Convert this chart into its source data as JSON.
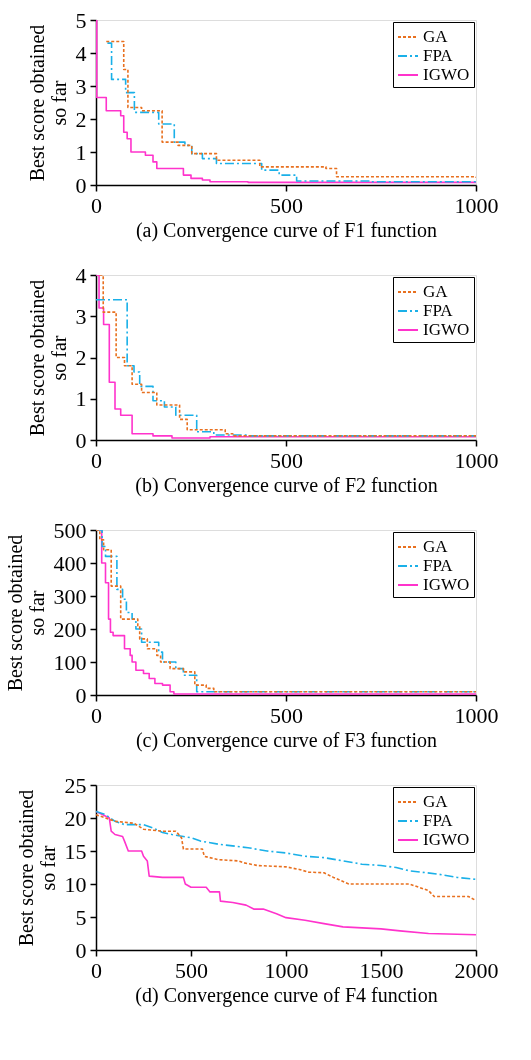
{
  "chart_data": [
    {
      "type": "step",
      "xlabel": "(a) Convergence curve of F1 function",
      "ylabel": "Best score obtained\nso far",
      "xlim": [
        0,
        1000
      ],
      "ylim": [
        0,
        5
      ],
      "xticks": [
        0,
        500,
        1000
      ],
      "yticks": [
        0,
        1,
        2,
        3,
        4,
        5
      ],
      "grid": false,
      "marker": "none",
      "legend": "top right",
      "series": [
        {
          "name": "GA",
          "color": "#e8701f",
          "line_style": "dotted",
          "x": [
            27,
            73,
            84,
            120,
            174,
            216,
            252,
            317,
            431,
            605,
            633,
            1000
          ],
          "values": [
            4.35,
            3.5,
            2.35,
            2.25,
            1.3,
            1.2,
            0.95,
            0.75,
            0.55,
            0.5,
            0.25,
            0.22
          ]
        },
        {
          "name": "FPA",
          "color": "#1ab0e8",
          "line_style": "dashed",
          "x": [
            30,
            41,
            78,
            101,
            165,
            206,
            234,
            252,
            280,
            317,
            436,
            482,
            528,
            720,
            1000
          ],
          "values": [
            4.3,
            3.2,
            2.8,
            2.2,
            1.85,
            1.3,
            1.2,
            0.95,
            0.8,
            0.65,
            0.45,
            0.3,
            0.12,
            0.1,
            0.05
          ]
        },
        {
          "name": "IGWO",
          "color": "#ff33cc",
          "line_style": "solid",
          "x": [
            0,
            2,
            27,
            65,
            73,
            82,
            92,
            130,
            150,
            160,
            230,
            250,
            280,
            300,
            400,
            1000
          ],
          "values": [
            5,
            2.65,
            2.25,
            2.1,
            1.6,
            1.4,
            1.0,
            0.9,
            0.7,
            0.5,
            0.3,
            0.2,
            0.15,
            0.1,
            0.08,
            0.06
          ]
        }
      ]
    },
    {
      "type": "step",
      "xlabel": "(b) Convergence curve of F2 function",
      "ylabel": "Best score obtained\nso far",
      "xlim": [
        0,
        1000
      ],
      "ylim": [
        0,
        4
      ],
      "xticks": [
        0,
        500,
        1000
      ],
      "yticks": [
        0,
        1,
        2,
        3,
        4
      ],
      "grid": false,
      "marker": "none",
      "legend": "top right",
      "series": [
        {
          "name": "GA",
          "color": "#e8701f",
          "line_style": "dotted",
          "x": [
            9,
            19,
            53,
            75,
            95,
            120,
            160,
            220,
            240,
            340,
            360,
            1000
          ],
          "values": [
            4,
            3.1,
            2.0,
            1.8,
            1.35,
            1.15,
            0.85,
            0.5,
            0.25,
            0.15,
            0.1,
            0.1
          ]
        },
        {
          "name": "FPA",
          "color": "#1ab0e8",
          "line_style": "dashed",
          "x": [
            0,
            82,
            100,
            115,
            150,
            180,
            210,
            265,
            310,
            395,
            1000
          ],
          "values": [
            3.4,
            1.8,
            1.65,
            1.3,
            0.95,
            0.8,
            0.6,
            0.2,
            0.12,
            0.1,
            0.08
          ]
        },
        {
          "name": "IGWO",
          "color": "#ff33cc",
          "line_style": "solid",
          "x": [
            0,
            8,
            20,
            35,
            50,
            65,
            95,
            150,
            200,
            300,
            1000
          ],
          "values": [
            4,
            3.2,
            2.8,
            1.4,
            0.75,
            0.6,
            0.15,
            0.1,
            0.05,
            0.08,
            0.08
          ]
        }
      ]
    },
    {
      "type": "step",
      "xlabel": "(c) Convergence curve of F3 function",
      "ylabel": "Best score obtained\nso far",
      "xlim": [
        0,
        1000
      ],
      "ylim": [
        0,
        500
      ],
      "xticks": [
        0,
        500,
        1000
      ],
      "yticks": [
        0,
        100,
        200,
        300,
        400,
        500
      ],
      "grid": false,
      "marker": "none",
      "legend": "top right",
      "series": [
        {
          "name": "GA",
          "color": "#e8701f",
          "line_style": "dotted",
          "x": [
            0,
            10,
            20,
            40,
            65,
            110,
            115,
            135,
            160,
            170,
            195,
            230,
            260,
            290,
            310,
            1000
          ],
          "values": [
            500,
            470,
            440,
            330,
            230,
            210,
            170,
            140,
            120,
            100,
            80,
            70,
            30,
            20,
            10,
            10
          ]
        },
        {
          "name": "FPA",
          "color": "#1ab0e8",
          "line_style": "dashed",
          "x": [
            0,
            16,
            25,
            55,
            70,
            80,
            95,
            105,
            120,
            165,
            175,
            210,
            230,
            265,
            1000
          ],
          "values": [
            500,
            450,
            420,
            320,
            290,
            250,
            230,
            200,
            160,
            130,
            100,
            80,
            60,
            10,
            8
          ]
        },
        {
          "name": "IGWO",
          "color": "#ff33cc",
          "line_style": "solid",
          "x": [
            0,
            15,
            25,
            33,
            38,
            45,
            75,
            90,
            95,
            105,
            125,
            140,
            155,
            175,
            195,
            205,
            1000
          ],
          "values": [
            500,
            400,
            340,
            230,
            190,
            180,
            140,
            120,
            100,
            75,
            65,
            50,
            35,
            30,
            10,
            3,
            3
          ]
        }
      ]
    },
    {
      "type": "line",
      "xlabel": "(d) Convergence curve of F4 function",
      "ylabel": "Best score obtained\nso far",
      "xlim": [
        0,
        2000
      ],
      "ylim": [
        0,
        25
      ],
      "xticks": [
        0,
        500,
        1000,
        1500,
        2000
      ],
      "yticks": [
        0,
        5,
        10,
        15,
        20,
        25
      ],
      "grid": false,
      "marker": "none",
      "legend": "top right",
      "series": [
        {
          "name": "GA",
          "color": "#e8701f",
          "line_style": "dotted",
          "x": [
            0,
            50,
            100,
            200,
            250,
            350,
            420,
            450,
            460,
            560,
            570,
            640,
            750,
            780,
            850,
            1000,
            1070,
            1120,
            1200,
            1250,
            1330,
            1650,
            1700,
            1750,
            1780,
            1960,
            2000
          ],
          "values": [
            20.5,
            20,
            19.5,
            19.2,
            18.3,
            18,
            18,
            17,
            15.3,
            15.3,
            14.2,
            13.7,
            13.5,
            13.2,
            12.8,
            12.6,
            12.2,
            11.8,
            11.7,
            11,
            10,
            10,
            9.5,
            9,
            8.1,
            8.1,
            7.5
          ]
        },
        {
          "name": "FPA",
          "color": "#1ab0e8",
          "line_style": "dashed",
          "x": [
            0,
            50,
            100,
            150,
            250,
            300,
            350,
            400,
            500,
            550,
            650,
            800,
            900,
            1000,
            1100,
            1200,
            1300,
            1400,
            1500,
            1580,
            1650,
            1800,
            1900,
            2000
          ],
          "values": [
            21,
            20.5,
            19.5,
            19,
            19,
            18.5,
            17.8,
            17.5,
            17,
            16.5,
            16,
            15.5,
            15,
            14.7,
            14.2,
            14,
            13.5,
            13,
            12.8,
            12.5,
            12,
            11.5,
            11,
            10.7
          ]
        },
        {
          "name": "IGWO",
          "color": "#ff33cc",
          "line_style": "solid",
          "x": [
            0,
            70,
            80,
            100,
            140,
            150,
            170,
            240,
            250,
            270,
            280,
            350,
            460,
            470,
            500,
            580,
            600,
            650,
            655,
            720,
            790,
            830,
            880,
            950,
            1000,
            1100,
            1200,
            1300,
            1500,
            1600,
            1750,
            2000
          ],
          "values": [
            21,
            20,
            18,
            17.5,
            17.2,
            16.5,
            15,
            15,
            14.2,
            13.5,
            11.2,
            11,
            11,
            10,
            9.5,
            9.5,
            8.8,
            8.8,
            7.4,
            7.2,
            6.8,
            6.2,
            6.2,
            5.5,
            4.9,
            4.5,
            4,
            3.5,
            3.2,
            2.9,
            2.5,
            2.3
          ]
        }
      ]
    }
  ]
}
